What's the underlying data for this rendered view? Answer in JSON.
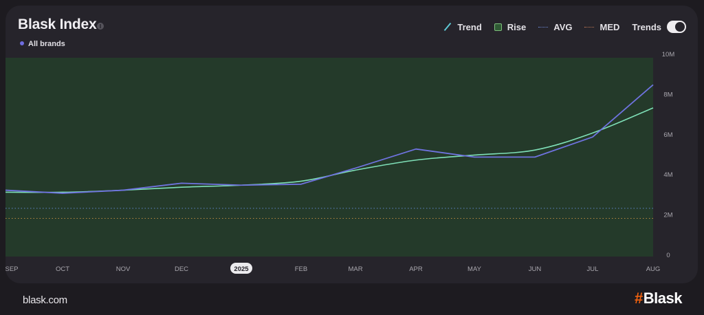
{
  "header": {
    "title": "Blask Index",
    "series_label": "All brands"
  },
  "legend": {
    "items": [
      {
        "key": "trend",
        "label": "Trend"
      },
      {
        "key": "rise",
        "label": "Rise"
      },
      {
        "key": "avg",
        "label": "AVG"
      },
      {
        "key": "med",
        "label": "MED"
      }
    ],
    "toggle_label": "Trends",
    "toggle_on": true
  },
  "footer": {
    "url": "blask.com",
    "brand_hash": "#",
    "brand_name": "Blask"
  },
  "colors": {
    "plot_bg": "#243a2a",
    "actual_line": "#6f73e0",
    "trend_line": "#7fe0b8",
    "avg_line": "#5f86c9",
    "med_line": "#b9893f",
    "brand_accent": "#f0620f"
  },
  "chart_data": {
    "type": "line",
    "title": "Blask Index",
    "subtitle": "All brands",
    "xlabel": "",
    "ylabel": "",
    "categories": [
      "SEP",
      "OCT",
      "NOV",
      "DEC",
      "2025",
      "FEB",
      "MAR",
      "APR",
      "MAY",
      "JUN",
      "JUL",
      "AUG"
    ],
    "series": [
      {
        "name": "All brands",
        "values": [
          3200000,
          3050000,
          3200000,
          3550000,
          3450000,
          3500000,
          4300000,
          5250000,
          4850000,
          4850000,
          5850000,
          8450000
        ]
      },
      {
        "name": "Trend",
        "values": [
          3100000,
          3100000,
          3200000,
          3350000,
          3450000,
          3650000,
          4200000,
          4700000,
          4950000,
          5200000,
          6050000,
          7300000
        ]
      }
    ],
    "reference_lines": [
      {
        "name": "AVG",
        "value": 2300000
      },
      {
        "name": "MED",
        "value": 1800000
      }
    ],
    "rise_region": true,
    "yticks": [
      "0",
      "2M",
      "4M",
      "6M",
      "8M",
      "10M"
    ],
    "ytick_values": [
      0,
      2000000,
      4000000,
      6000000,
      8000000,
      10000000
    ],
    "ylim": [
      0,
      10000000
    ],
    "highlighted_tick": "2025",
    "grid": false,
    "legend_position": "top-right",
    "y_axis_position": "right"
  }
}
